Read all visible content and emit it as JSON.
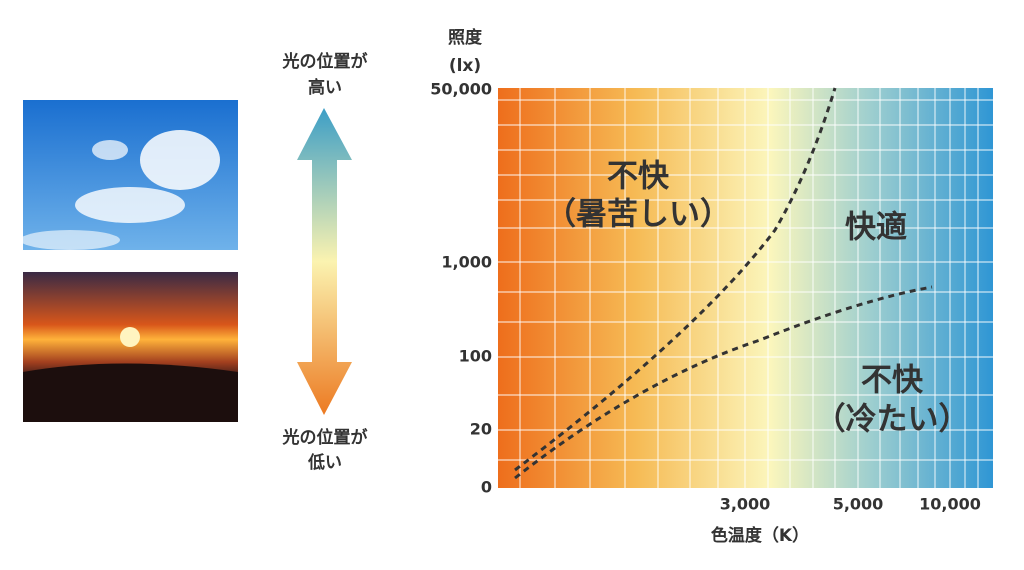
{
  "arrow": {
    "top_label": [
      "光の位置が",
      "高い"
    ],
    "bottom_label": [
      "光の位置が",
      "低い"
    ]
  },
  "graph": {
    "y_axis_title": [
      "照度",
      "(lx)"
    ],
    "y_tick_labels": [
      "50,000",
      "1,000",
      "100",
      "20",
      "0"
    ],
    "x_tick_labels": [
      "3,000",
      "5,000",
      "10,000"
    ],
    "x_axis_title": "色温度（K）",
    "regions": [
      {
        "lines": [
          "不快",
          "（暑苦しい）"
        ]
      },
      {
        "lines": [
          "快適"
        ]
      },
      {
        "lines": [
          "不快",
          "（冷たい）"
        ]
      }
    ]
  }
}
